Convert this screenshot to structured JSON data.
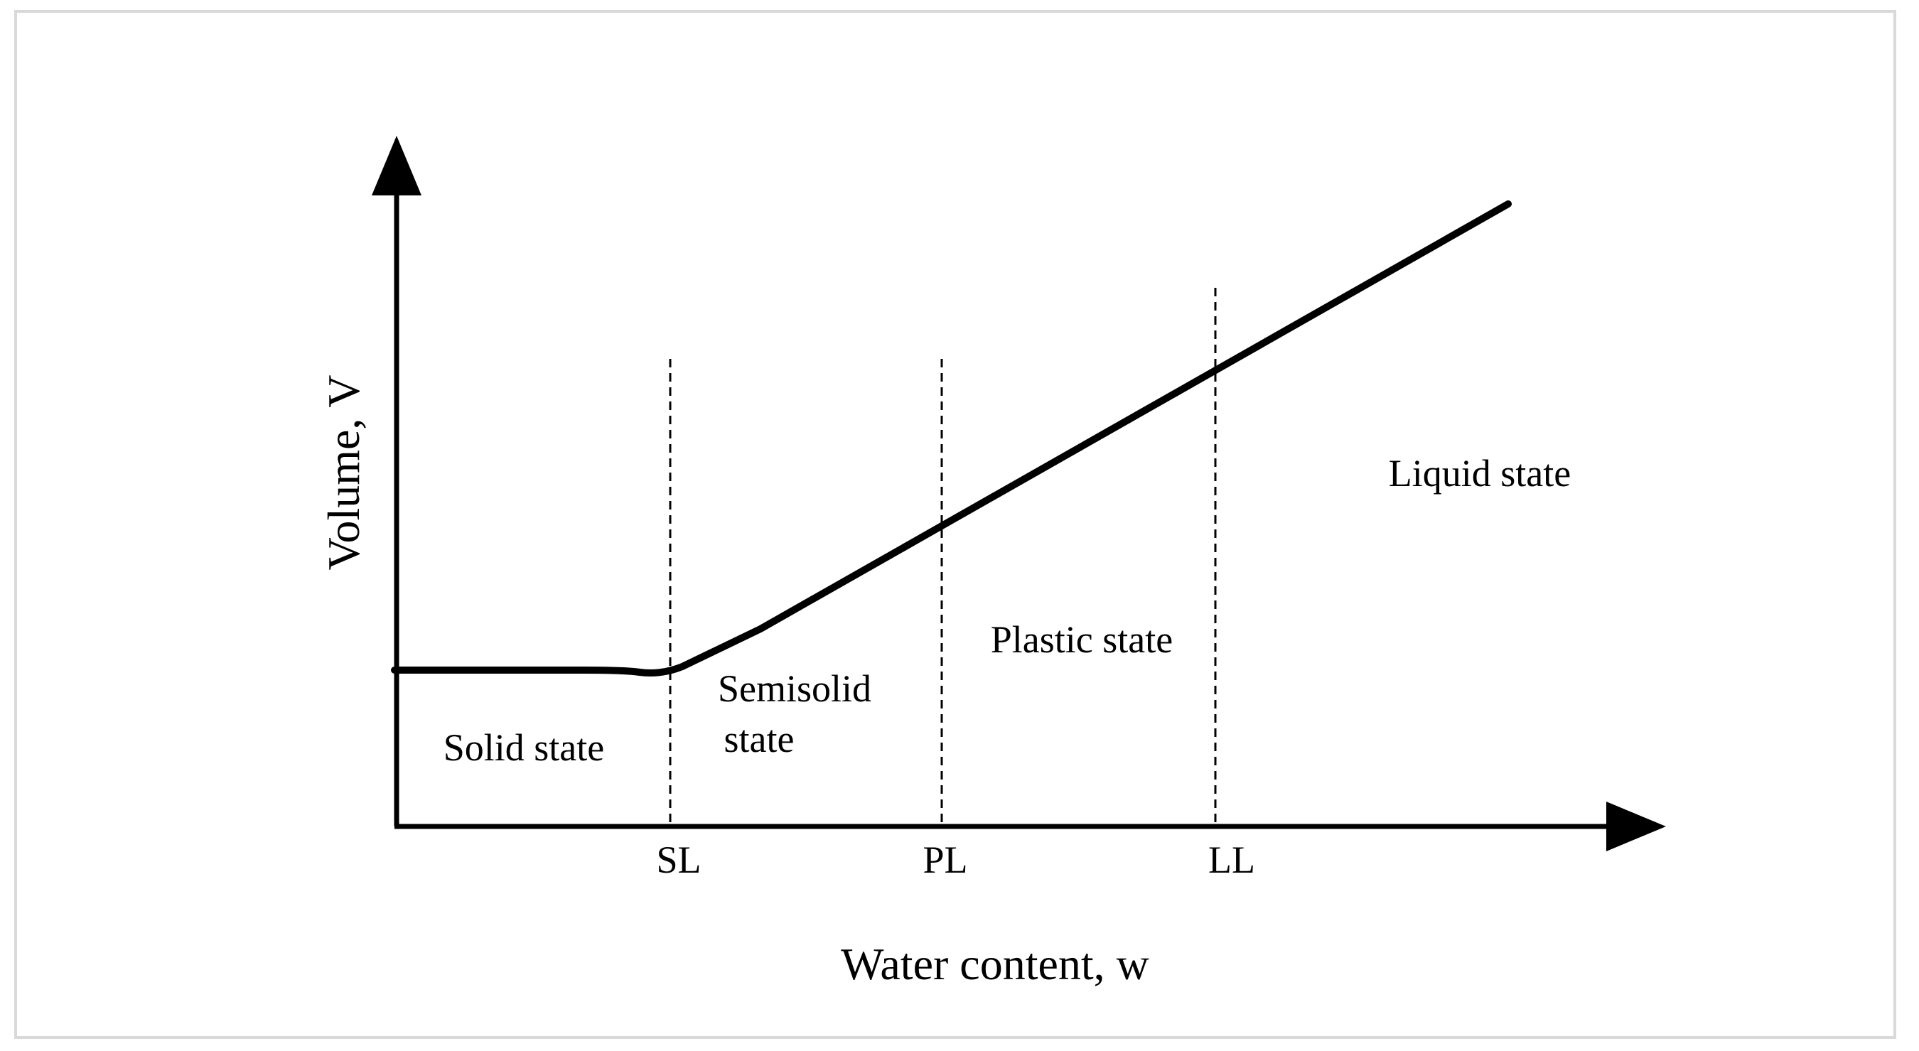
{
  "axes": {
    "x_label": "Water content, w",
    "y_label": "Volume, V"
  },
  "limits": {
    "shrinkage": "SL",
    "plastic": "PL",
    "liquid": "LL"
  },
  "states": {
    "solid": "Solid state",
    "semisolid_line1": "Semisolid",
    "semisolid_line2": "state",
    "plastic": "Plastic state",
    "liquid": "Liquid state"
  },
  "colors": {
    "line": "#000000",
    "frame": "#d9d9d9"
  }
}
